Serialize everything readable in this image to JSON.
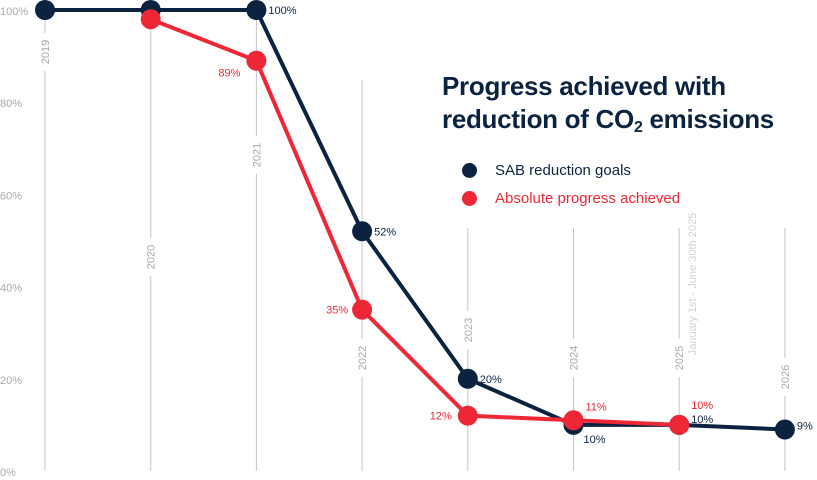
{
  "chart_data": {
    "type": "line",
    "title_part1": "Progress achieved with",
    "title_part2": "reduction of CO",
    "title_sub": "2",
    "title_part3": " emissions",
    "categories": [
      "2019",
      "2020",
      "2021",
      "2022",
      "2023",
      "2024",
      "2025",
      "2026"
    ],
    "category_note": "January 1st - June 30th 2025",
    "y_ticks": [
      "0%",
      "20%",
      "40%",
      "60%",
      "80%",
      "100%"
    ],
    "ylim": [
      0,
      100
    ],
    "legend_placement": "top-right",
    "series": [
      {
        "name": "SAB reduction goals",
        "color": "#0b2340",
        "values": [
          100,
          100,
          100,
          52,
          20,
          10,
          10,
          9
        ],
        "labels": [
          "",
          "",
          "100%",
          "52%",
          "20%",
          "10%",
          "10%",
          "9%"
        ]
      },
      {
        "name": "Absolute progress achieved",
        "color": "#ee2737",
        "values": [
          null,
          98,
          89,
          35,
          12,
          11,
          10,
          null
        ],
        "labels": [
          "",
          "",
          "89%",
          "35%",
          "12%",
          "11%",
          "10%",
          ""
        ]
      }
    ]
  }
}
